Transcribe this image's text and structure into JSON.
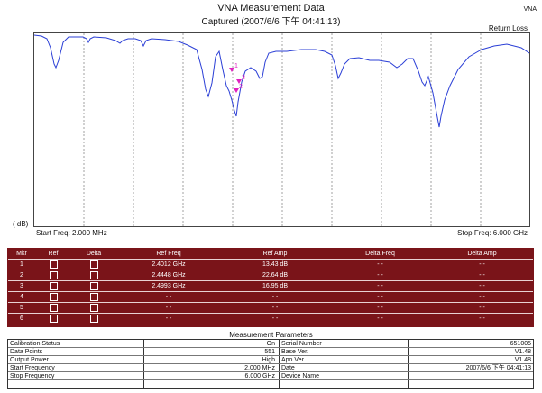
{
  "header": {
    "title": "VNA Measurement Data",
    "captured": "Captured  (2007/6/6 下午 04:41:13)",
    "brand": "VNA"
  },
  "chart": {
    "trace_label": "Return Loss",
    "unit_label": "( dB)",
    "start_freq": "Start Freq: 2.000 MHz",
    "stop_freq": "Stop Freq: 6.000 GHz",
    "trace_color": "#2b3fd6",
    "marker_color": "#e020c0",
    "grid_color": "#8a8a8a"
  },
  "markers": {
    "headers": [
      "Mkr",
      "Ref",
      "Delta",
      "Ref Freq",
      "Ref Amp",
      "Delta Freq",
      "Delta Amp"
    ],
    "rows": [
      {
        "mkr": "1",
        "ref_freq": "2.4012 GHz",
        "ref_amp": "13.43 dB",
        "delta_freq": "- -",
        "delta_amp": "- -"
      },
      {
        "mkr": "2",
        "ref_freq": "2.4448 GHz",
        "ref_amp": "22.64 dB",
        "delta_freq": "- -",
        "delta_amp": "- -"
      },
      {
        "mkr": "3",
        "ref_freq": "2.4993 GHz",
        "ref_amp": "16.95 dB",
        "delta_freq": "- -",
        "delta_amp": "- -"
      },
      {
        "mkr": "4",
        "ref_freq": "- -",
        "ref_amp": "- -",
        "delta_freq": "- -",
        "delta_amp": "- -"
      },
      {
        "mkr": "5",
        "ref_freq": "- -",
        "ref_amp": "- -",
        "delta_freq": "- -",
        "delta_amp": "- -"
      },
      {
        "mkr": "6",
        "ref_freq": "- -",
        "ref_amp": "- -",
        "delta_freq": "- -",
        "delta_amp": "- -"
      }
    ],
    "header_color": "#7a1419"
  },
  "params": {
    "title": "Measurement Parameters",
    "rows": [
      {
        "label1": "Calibration Status",
        "value1": "On",
        "label2": "Serial Number",
        "value2": "651005"
      },
      {
        "label1": "Data Points",
        "value1": "551",
        "label2": "Base Ver.",
        "value2": "V1.48"
      },
      {
        "label1": "Output Power",
        "value1": "High",
        "label2": "Apo Ver.",
        "value2": "V1.48"
      },
      {
        "label1": "Start Frequency",
        "value1": "2.000 MHz",
        "label2": "Date",
        "value2": "2007/6/6 下午 04:41:13"
      },
      {
        "label1": "Stop Frequency",
        "value1": "6.000 GHz",
        "label2": "Device Name",
        "value2": ""
      }
    ]
  }
}
